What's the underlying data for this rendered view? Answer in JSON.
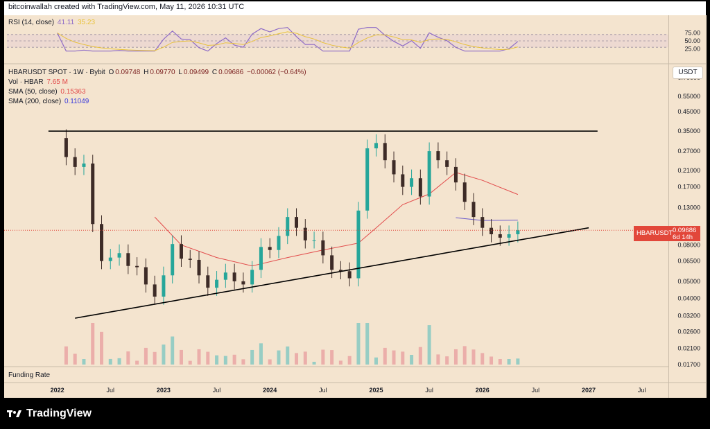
{
  "header": {
    "text": "bitcoinwallah created with TradingView.com, May 11, 2026 10:31 UTC"
  },
  "rsi": {
    "label": "RSI (14, close)",
    "value": "41.11",
    "ma_value": "35.23",
    "ticks": [
      "75.00",
      "50.00",
      "25.00"
    ]
  },
  "legend": {
    "symbol": "HBARUSDT SPOT · 1W · Bybit",
    "o_label": "O",
    "o": "0.09748",
    "h_label": "H",
    "h": "0.09770",
    "l_label": "L",
    "l": "0.09499",
    "c_label": "C",
    "c": "0.09686",
    "change": "−0.00062 (−0.64%)",
    "vol_label": "Vol · HBAR",
    "vol": "7.65 M",
    "sma50_label": "SMA (50, close)",
    "sma50": "0.15363",
    "sma200_label": "SMA (200, close)",
    "sma200": "0.11049"
  },
  "currency_button": "USDT",
  "price_tag": {
    "symbol": "HBARUSDT",
    "price": "0.09686",
    "countdown": "6d 14h"
  },
  "funding_label": "Funding Rate",
  "brand": "TradingView",
  "colors": {
    "up": "#26a69a",
    "down": "#3d2b27",
    "sma50": "#e24b4b",
    "sma200": "#6a5acd",
    "rsi": "#8e6bc7",
    "rsi_ma": "#e8c23a",
    "price_line": "#e2473a"
  },
  "chart_data": {
    "type": "candlestick",
    "symbol": "HBARUSDT",
    "interval": "1W",
    "y_scale": "log",
    "y_ticks": [
      0.7,
      0.55,
      0.45,
      0.35,
      0.27,
      0.21,
      0.17,
      0.13,
      0.08,
      0.065,
      0.05,
      0.04,
      0.032,
      0.026,
      0.021,
      0.017
    ],
    "y_tick_labels": [
      "0.70000",
      "0.55000",
      "0.45000",
      "0.35000",
      "0.27000",
      "0.21000",
      "0.17000",
      "0.13000",
      "0.08000",
      "0.06500",
      "0.05000",
      "0.04000",
      "0.03200",
      "0.02600",
      "0.02100",
      "0.01700"
    ],
    "x_tick_labels": [
      "2022",
      "Jul",
      "2023",
      "Jul",
      "2024",
      "Jul",
      "2025",
      "Jul",
      "2026",
      "Jul",
      "2027",
      "Jul"
    ],
    "x_ticks": [
      "2022-01",
      "2022-07",
      "2023-01",
      "2023-07",
      "2024-01",
      "2024-07",
      "2025-01",
      "2025-07",
      "2026-01",
      "2026-07",
      "2027-01",
      "2027-07"
    ],
    "x_range": [
      "2021-07",
      "2027-10"
    ],
    "price_path": [
      [
        "2022-01",
        0.32
      ],
      [
        "2022-02",
        0.25
      ],
      [
        "2022-03",
        0.22
      ],
      [
        "2022-04",
        0.23
      ],
      [
        "2022-05",
        0.105
      ],
      [
        "2022-06",
        0.065
      ],
      [
        "2022-07",
        0.068
      ],
      [
        "2022-08",
        0.072
      ],
      [
        "2022-09",
        0.061
      ],
      [
        "2022-10",
        0.06
      ],
      [
        "2022-11",
        0.048
      ],
      [
        "2022-12",
        0.041
      ],
      [
        "2023-01",
        0.054
      ],
      [
        "2023-02",
        0.081
      ],
      [
        "2023-03",
        0.067
      ],
      [
        "2023-04",
        0.066
      ],
      [
        "2023-05",
        0.054
      ],
      [
        "2023-06",
        0.046
      ],
      [
        "2023-07",
        0.051
      ],
      [
        "2023-08",
        0.056
      ],
      [
        "2023-09",
        0.05
      ],
      [
        "2023-10",
        0.048
      ],
      [
        "2023-11",
        0.058
      ],
      [
        "2023-12",
        0.078
      ],
      [
        "2024-01",
        0.075
      ],
      [
        "2024-02",
        0.09
      ],
      [
        "2024-03",
        0.115
      ],
      [
        "2024-04",
        0.1
      ],
      [
        "2024-05",
        0.085
      ],
      [
        "2024-06",
        0.085
      ],
      [
        "2024-07",
        0.07
      ],
      [
        "2024-08",
        0.058
      ],
      [
        "2024-09",
        0.057
      ],
      [
        "2024-10",
        0.052
      ],
      [
        "2024-11",
        0.125
      ],
      [
        "2024-12",
        0.28
      ],
      [
        "2025-01",
        0.3
      ],
      [
        "2025-02",
        0.24
      ],
      [
        "2025-03",
        0.2
      ],
      [
        "2025-04",
        0.17
      ],
      [
        "2025-05",
        0.19
      ],
      [
        "2025-06",
        0.15
      ],
      [
        "2025-07",
        0.27
      ],
      [
        "2025-08",
        0.24
      ],
      [
        "2025-09",
        0.22
      ],
      [
        "2025-10",
        0.18
      ],
      [
        "2025-11",
        0.14
      ],
      [
        "2025-12",
        0.115
      ],
      [
        "2026-01",
        0.1
      ],
      [
        "2026-02",
        0.092
      ],
      [
        "2026-03",
        0.088
      ],
      [
        "2026-04",
        0.092
      ],
      [
        "2026-05",
        0.0969
      ]
    ],
    "series": [
      {
        "name": "SMA (50, close)",
        "points": [
          [
            "2022-12",
            0.115
          ],
          [
            "2023-03",
            0.08
          ],
          [
            "2023-07",
            0.068
          ],
          [
            "2023-11",
            0.061
          ],
          [
            "2024-03",
            0.068
          ],
          [
            "2024-07",
            0.075
          ],
          [
            "2024-11",
            0.082
          ],
          [
            "2025-01",
            0.1
          ],
          [
            "2025-04",
            0.135
          ],
          [
            "2025-07",
            0.155
          ],
          [
            "2025-10",
            0.205
          ],
          [
            "2026-01",
            0.185
          ],
          [
            "2026-05",
            0.154
          ]
        ]
      },
      {
        "name": "SMA (200, close)",
        "points": [
          [
            "2025-10",
            0.114
          ],
          [
            "2026-01",
            0.11
          ],
          [
            "2026-05",
            0.1105
          ]
        ]
      }
    ],
    "trendlines": [
      {
        "from": [
          "2021-12",
          0.35
        ],
        "to": [
          "2027-02",
          0.35
        ]
      },
      {
        "from": [
          "2022-03",
          0.031
        ],
        "to": [
          "2027-01",
          0.1
        ]
      }
    ],
    "current_price": 0.09686
  }
}
